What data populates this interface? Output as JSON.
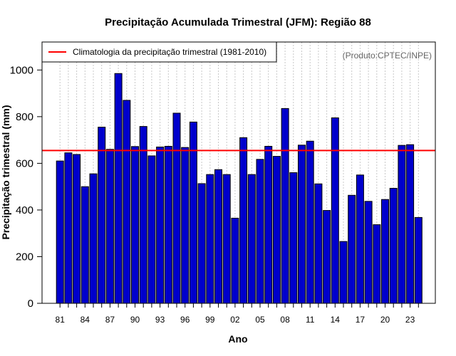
{
  "chart_data": {
    "type": "bar",
    "title": "Precipitação Acumulada Trimestral (JFM): Região 88",
    "xlabel": "Ano",
    "ylabel": "Precipitação trimestral (mm)",
    "source": "(Produto:CPTEC/INPE)",
    "legend": {
      "label": "Climatologia da precipitação trimestral (1981-2010)",
      "placement": "top-left"
    },
    "ylim": [
      0,
      1120
    ],
    "yticks": [
      0,
      200,
      400,
      600,
      800,
      1000
    ],
    "grid": {
      "vertical_dotted": true
    },
    "climatology": 655,
    "categories": [
      "81",
      "82",
      "83",
      "84",
      "85",
      "86",
      "87",
      "88",
      "89",
      "90",
      "91",
      "92",
      "93",
      "94",
      "95",
      "96",
      "97",
      "98",
      "99",
      "00",
      "01",
      "02",
      "03",
      "04",
      "05",
      "06",
      "07",
      "08",
      "09",
      "10",
      "11",
      "12",
      "13",
      "14",
      "15",
      "16",
      "17",
      "18",
      "19",
      "20",
      "21",
      "22",
      "23",
      "24"
    ],
    "xtick_labels": [
      "81",
      "84",
      "87",
      "90",
      "93",
      "96",
      "99",
      "02",
      "05",
      "08",
      "11",
      "14",
      "17",
      "20",
      "23"
    ],
    "values": [
      610,
      645,
      638,
      500,
      555,
      755,
      660,
      985,
      870,
      672,
      758,
      632,
      670,
      673,
      815,
      668,
      777,
      513,
      552,
      573,
      552,
      365,
      710,
      552,
      617,
      673,
      630,
      835,
      560,
      678,
      695,
      512,
      398,
      795,
      265,
      463,
      550,
      437,
      337,
      445,
      493,
      677,
      680,
      368
    ],
    "colors": {
      "bar_fill": "#0000cc",
      "bar_stroke": "#000000",
      "climatology_line": "#ff0000",
      "grid": "#c8c8c8",
      "source_text": "#666666"
    }
  }
}
